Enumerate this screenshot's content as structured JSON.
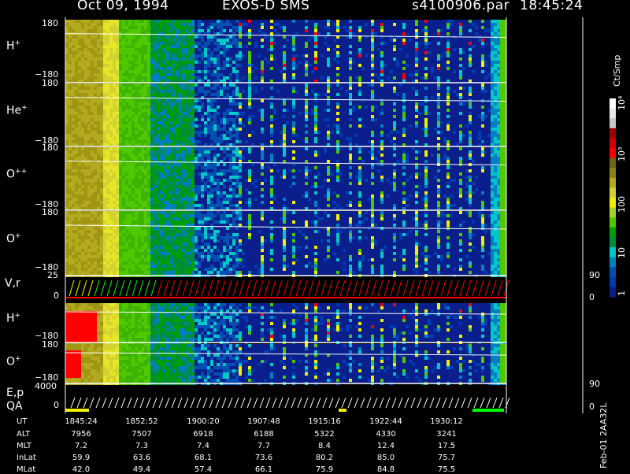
{
  "header": {
    "date": "Oct 09, 1994",
    "instrument": "EXOS-D SMS",
    "file": "s4100906.par",
    "time": "18:45:24"
  },
  "panels": [
    {
      "label": "H",
      "sup": "+",
      "ymax": "180",
      "ymin": "−180"
    },
    {
      "label": "He",
      "sup": "+",
      "ymax": "180",
      "ymin": "−180"
    },
    {
      "label": "O",
      "sup": "++",
      "ymax": "180",
      "ymin": "−180"
    },
    {
      "label": "O",
      "sup": "+",
      "ymax": "180",
      "ymin": "−180"
    }
  ],
  "vr": {
    "label": "V,r",
    "ytop": "25",
    "ybot": "0",
    "rtop": "90",
    "rbot": "0"
  },
  "lower_panels": [
    {
      "label": "H",
      "sup": "+",
      "ymax": "180",
      "ymin": "−180"
    },
    {
      "label": "O",
      "sup": "+",
      "ymax": "180",
      "ymin": "−180"
    }
  ],
  "ep": {
    "label1": "E,p",
    "label2": "QA",
    "ytop": "4000",
    "ybot": "0",
    "rtop": "90",
    "rbot": "0"
  },
  "colorbar": {
    "unit": "Ct/Smp",
    "tick_labels": [
      "10⁴",
      "10³",
      "100",
      "10",
      "1"
    ],
    "colors": [
      "#ffffff",
      "#e8e8e8",
      "#c8c8c8",
      "#a00000",
      "#d00000",
      "#ff0000",
      "#6e6414",
      "#8c8214",
      "#b4aa1e",
      "#d2d232",
      "#f0f000",
      "#a0d232",
      "#50c800",
      "#00a000",
      "#008c3c",
      "#00c8c8",
      "#0080c0",
      "#0050b4",
      "#003cb4",
      "#0a1e8c"
    ]
  },
  "chart_data": {
    "type": "heatmap",
    "x_ticks": [
      "1845:24",
      "1852:52",
      "1900:20",
      "1907:48",
      "1915:16",
      "1922:44",
      "1930:12"
    ],
    "ephemeris": [
      {
        "name": "UT",
        "values": [
          "1845:24",
          "1852:52",
          "1900:20",
          "1907:48",
          "1915:16",
          "1922:44",
          "1930:12"
        ]
      },
      {
        "name": "ALT",
        "values": [
          "7956",
          "7507",
          "6918",
          "6188",
          "5322",
          "4330",
          "3241"
        ]
      },
      {
        "name": "MLT",
        "values": [
          "7.2",
          "7.3",
          "7.4",
          "7.7",
          "8.4",
          "12.4",
          "17.5"
        ]
      },
      {
        "name": "InLat",
        "values": [
          "59.9",
          "63.6",
          "68.1",
          "73.6",
          "80.2",
          "85.0",
          "75.7"
        ]
      },
      {
        "name": "MLat",
        "values": [
          "42.0",
          "49.4",
          "57.4",
          "66.1",
          "75.9",
          "84.8",
          "75.5"
        ]
      }
    ]
  },
  "footer": {
    "side_label": "Feb-01 2AA32L"
  }
}
